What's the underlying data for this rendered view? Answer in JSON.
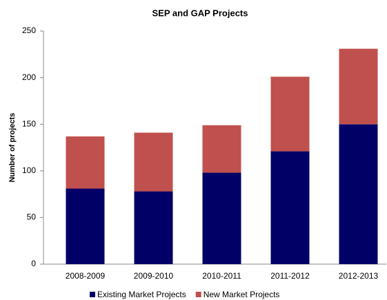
{
  "chart_data": {
    "type": "stacked_bar",
    "title": "SEP and GAP Projects",
    "y_label": "Number of projects",
    "categories": [
      "2008-2009",
      "2009-2010",
      "2010-2011",
      "2011-2012",
      "2012-2013"
    ],
    "series": [
      {
        "name": "Existing Market Projects",
        "color": "#000066",
        "values": [
          81,
          78,
          98,
          121,
          150
        ]
      },
      {
        "name": "New Market Projects",
        "color": "#c0504d",
        "values": [
          56,
          63,
          51,
          80,
          81
        ]
      }
    ],
    "ylim": [
      0,
      250
    ],
    "yticks": [
      0,
      50,
      100,
      150,
      200,
      250
    ],
    "grid": false,
    "legend": "bottom"
  }
}
